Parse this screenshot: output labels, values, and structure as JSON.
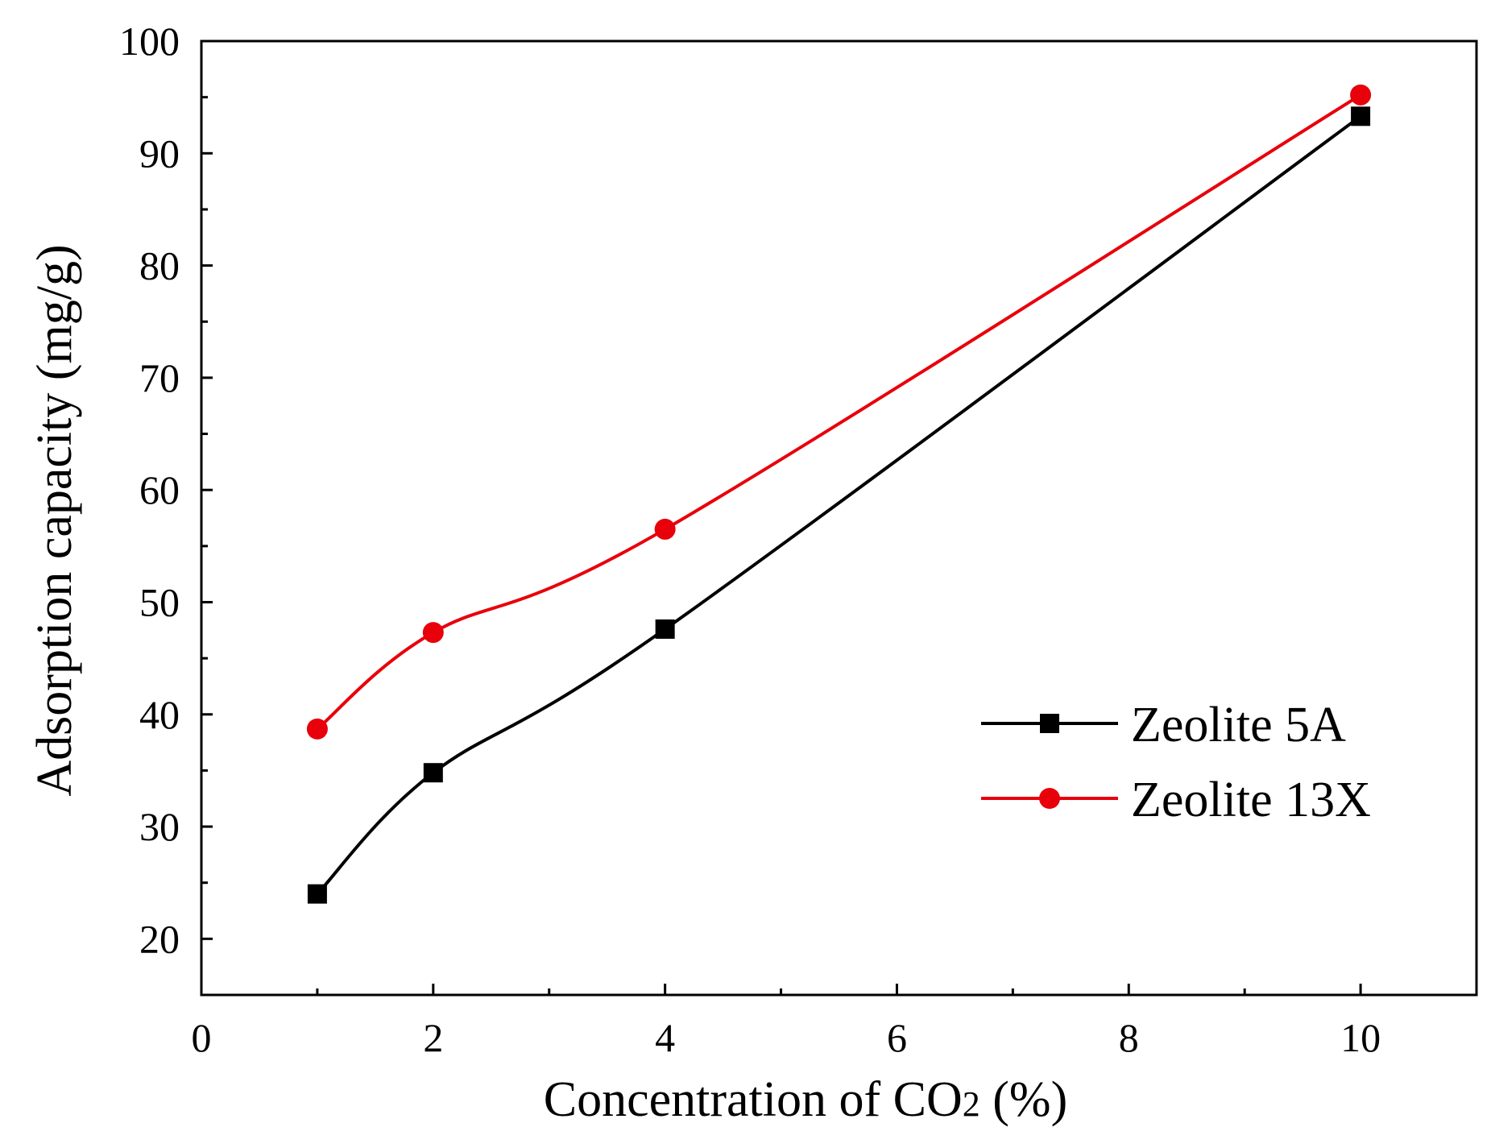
{
  "chart_data": {
    "type": "line",
    "title": "",
    "xlabel_parts": {
      "prefix": "Concentration of CO",
      "subscript": "2",
      "suffix": " (%)"
    },
    "ylabel": "Adsorption capacity (mg/g)",
    "xlim": [
      0,
      11
    ],
    "ylim": [
      15,
      100
    ],
    "x_ticks": [
      0,
      2,
      4,
      6,
      8,
      10
    ],
    "x_minor_ticks": [
      1,
      3,
      5,
      7,
      9
    ],
    "y_ticks": [
      20,
      30,
      40,
      50,
      60,
      70,
      80,
      90,
      100
    ],
    "y_minor_ticks": [
      25,
      35,
      45,
      55,
      65,
      75,
      85,
      95
    ],
    "grid": false,
    "legend_position": "lower-right",
    "series": [
      {
        "name": "Zeolite 5A",
        "marker": "square",
        "color": "#000000",
        "x": [
          1,
          2,
          4,
          10
        ],
        "values": [
          24.0,
          34.8,
          47.6,
          93.3
        ]
      },
      {
        "name": "Zeolite 13X",
        "marker": "circle",
        "color": "#e8000b",
        "x": [
          1,
          2,
          4,
          10
        ],
        "values": [
          38.7,
          47.3,
          56.5,
          95.2
        ]
      }
    ]
  }
}
